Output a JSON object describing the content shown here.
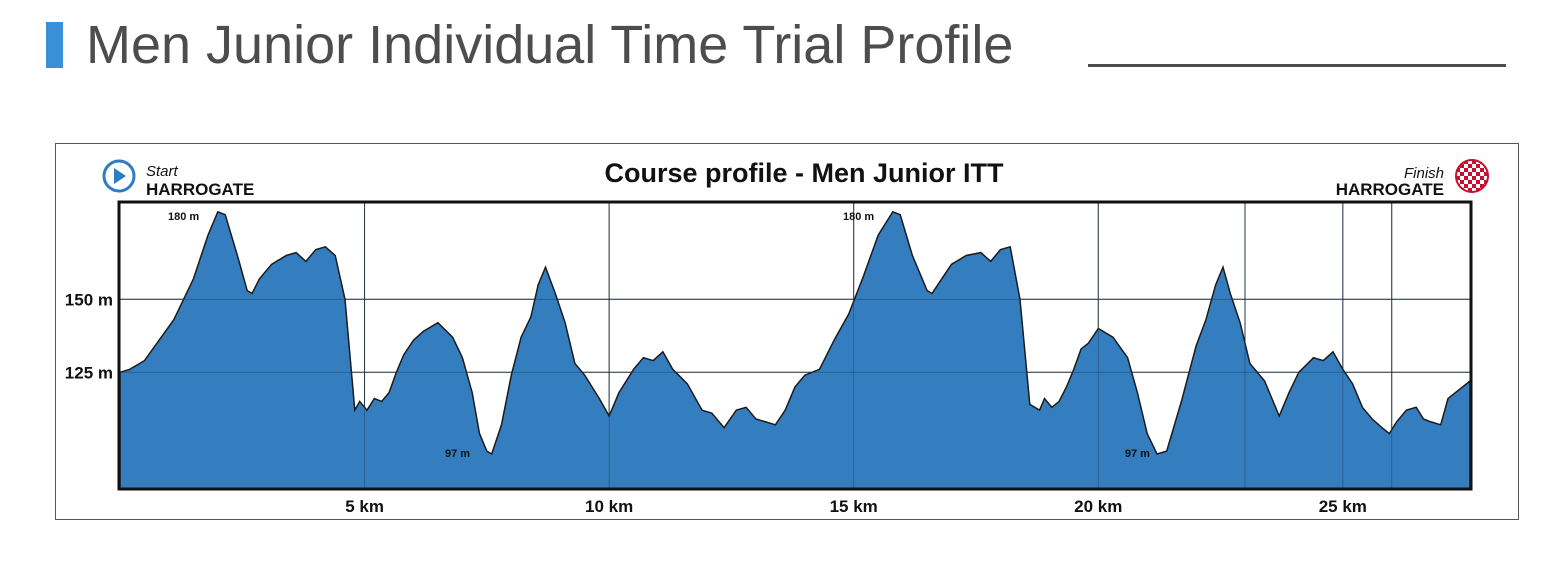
{
  "header": {
    "title": "Men Junior Individual Time Trial Profile"
  },
  "colors": {
    "accent": "#3a8fd6",
    "profile_fill": "#347ec0",
    "start_icon": "#2d7cc4",
    "finish_flag": "#c8102e"
  },
  "chart_data": {
    "type": "area",
    "title": "Course profile - Men Junior ITT",
    "start": {
      "label": "Start",
      "place": "HARROGATE",
      "icon": "play-circle-icon"
    },
    "finish": {
      "label": "Finish",
      "place": "HARROGATE",
      "icon": "checkered-flag-icon"
    },
    "xlabel": "",
    "ylabel": "",
    "x_unit": "km",
    "y_unit": "m",
    "xlim": [
      0,
      27.6
    ],
    "ylim": [
      85,
      183
    ],
    "x_ticks": [
      {
        "value": 5,
        "label": "5 km"
      },
      {
        "value": 10,
        "label": "10 km"
      },
      {
        "value": 15,
        "label": "15 km"
      },
      {
        "value": 20,
        "label": "20 km"
      },
      {
        "value": 25,
        "label": "25 km"
      }
    ],
    "x_gridlines": [
      5,
      10,
      15,
      20,
      23,
      25,
      26
    ],
    "y_ticks": [
      {
        "value": 150,
        "label": "150 m"
      },
      {
        "value": 125,
        "label": "125 m"
      }
    ],
    "annotations": [
      {
        "x": 1.3,
        "y": 180,
        "label": "180 m"
      },
      {
        "x": 15.1,
        "y": 180,
        "label": "180 m"
      },
      {
        "x": 6.9,
        "y": 97,
        "label": "97 m"
      },
      {
        "x": 20.8,
        "y": 97,
        "label": "97 m"
      }
    ],
    "series": [
      {
        "x": [
          0,
          0.2,
          0.5,
          0.8,
          1.1,
          1.5,
          1.8,
          2.0,
          2.15,
          2.4,
          2.6,
          2.7,
          2.85,
          3.1,
          3.4,
          3.6,
          3.8,
          4.0,
          4.2,
          4.4,
          4.6,
          4.8,
          4.9,
          5.05,
          5.2,
          5.35,
          5.5,
          5.65,
          5.8,
          6.0,
          6.2,
          6.5,
          6.8,
          7.0,
          7.2,
          7.35,
          7.5,
          7.6,
          7.8,
          8.0,
          8.2,
          8.4,
          8.55,
          8.7,
          8.9,
          9.1,
          9.3,
          9.5,
          9.8,
          10.0,
          10.2,
          10.5,
          10.7,
          10.9,
          11.1,
          11.3,
          11.6,
          11.9,
          12.1,
          12.35,
          12.6,
          12.8,
          13.0,
          13.2,
          13.4,
          13.6,
          13.8,
          14.0,
          14.3,
          14.6,
          14.9,
          15.2,
          15.5,
          15.8,
          15.95,
          16.2,
          16.5,
          16.6,
          16.8,
          17.0,
          17.3,
          17.6,
          17.8,
          18.0,
          18.2,
          18.4,
          18.6,
          18.8,
          18.9,
          19.05,
          19.2,
          19.35,
          19.5,
          19.65,
          19.8,
          20.0,
          20.3,
          20.6,
          20.8,
          21.0,
          21.2,
          21.4,
          21.7,
          22.0,
          22.2,
          22.4,
          22.55,
          22.7,
          22.9,
          23.1,
          23.4,
          23.7,
          23.9,
          24.1,
          24.4,
          24.6,
          24.8,
          25.0,
          25.2,
          25.4,
          25.6,
          25.8,
          25.95,
          26.1,
          26.3,
          26.5,
          26.65,
          26.8,
          27.0,
          27.15,
          27.3,
          27.45,
          27.6
        ],
        "y": [
          125,
          126,
          129,
          136,
          143,
          157,
          172,
          180,
          179,
          165,
          153,
          152,
          157,
          162,
          165,
          166,
          163,
          167,
          168,
          165,
          150,
          112,
          115,
          112,
          116,
          115,
          118,
          125,
          131,
          136,
          139,
          142,
          137,
          130,
          118,
          104,
          98,
          97,
          107,
          124,
          137,
          144,
          155,
          161,
          152,
          142,
          128,
          124,
          116,
          110,
          118,
          126,
          130,
          129,
          132,
          126,
          121,
          112,
          111,
          106,
          112,
          113,
          109,
          108,
          107,
          112,
          120,
          124,
          126,
          136,
          145,
          158,
          172,
          180,
          179,
          165,
          153,
          152,
          157,
          162,
          165,
          166,
          163,
          167,
          168,
          150,
          114,
          112,
          116,
          113,
          115,
          120,
          126,
          133,
          135,
          140,
          137,
          130,
          118,
          104,
          97,
          98,
          115,
          134,
          143,
          155,
          161,
          152,
          142,
          128,
          122,
          110,
          118,
          125,
          130,
          129,
          132,
          126,
          121,
          113,
          109,
          106,
          104,
          108,
          112,
          113,
          109,
          108,
          107,
          116,
          118,
          120,
          122
        ]
      }
    ]
  }
}
